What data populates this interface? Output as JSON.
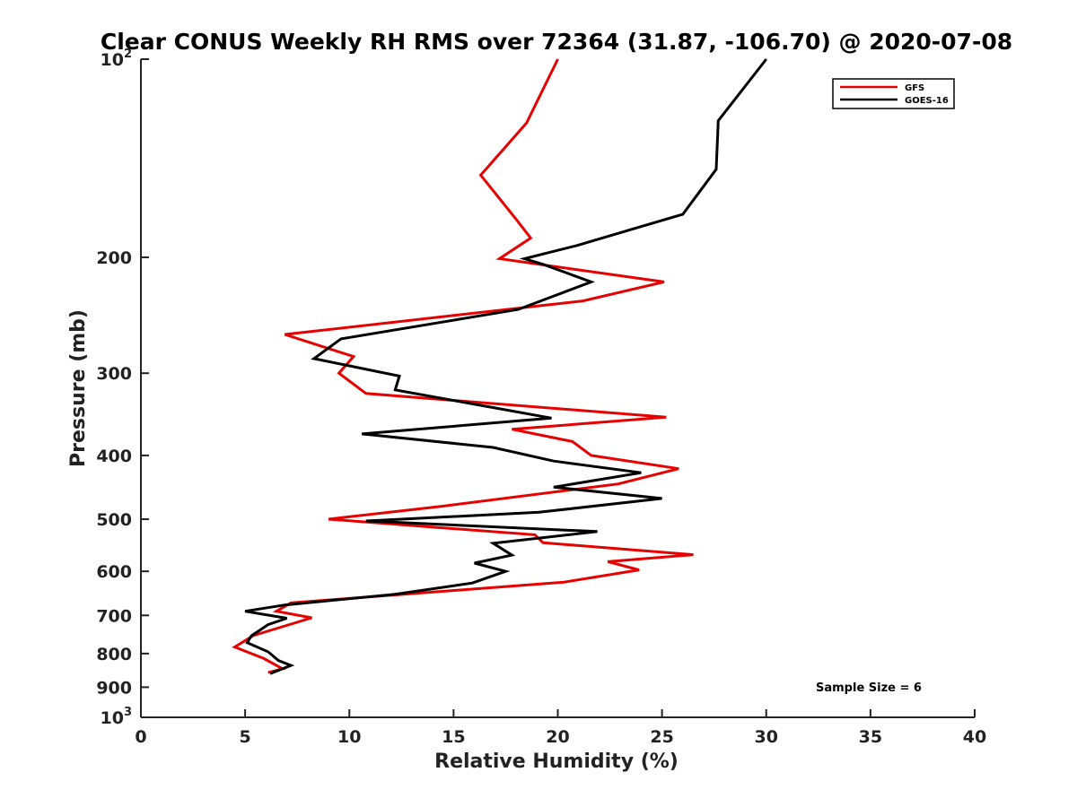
{
  "chart_data": {
    "type": "line",
    "title": "Clear CONUS Weekly RH RMS over 72364 (31.87, -106.70) @ 2020-07-08",
    "xlabel": "Relative Humidity (%)",
    "ylabel": "Pressure (mb)",
    "xlim": [
      0,
      40
    ],
    "ylim": [
      100,
      1000
    ],
    "y_scale": "log",
    "y_reversed": true,
    "x_ticks": [
      "0",
      "5",
      "10",
      "15",
      "20",
      "25",
      "30",
      "35",
      "40"
    ],
    "y_ticks": [
      {
        "value": 100,
        "base": "10",
        "exp": "2"
      },
      {
        "value": 200,
        "label": "200"
      },
      {
        "value": 300,
        "label": "300"
      },
      {
        "value": 400,
        "label": "400"
      },
      {
        "value": 500,
        "label": "500"
      },
      {
        "value": 600,
        "label": "600"
      },
      {
        "value": 700,
        "label": "700"
      },
      {
        "value": 800,
        "label": "800"
      },
      {
        "value": 900,
        "label": "900"
      },
      {
        "value": 1000,
        "base": "10",
        "exp": "3"
      }
    ],
    "legend_position": "top-right",
    "annotation": "Sample Size = 6",
    "series": [
      {
        "name": "GFS",
        "color": "#e60000",
        "points": [
          [
            20.0,
            100
          ],
          [
            18.5,
            125
          ],
          [
            16.3,
            150
          ],
          [
            18.0,
            175
          ],
          [
            18.7,
            187
          ],
          [
            17.2,
            201
          ],
          [
            25.1,
            218
          ],
          [
            21.2,
            233
          ],
          [
            6.9,
            262
          ],
          [
            10.2,
            283
          ],
          [
            9.5,
            300
          ],
          [
            10.8,
            322
          ],
          [
            25.2,
            350
          ],
          [
            17.8,
            365
          ],
          [
            20.7,
            381
          ],
          [
            21.6,
            400
          ],
          [
            25.8,
            419
          ],
          [
            22.9,
            442
          ],
          [
            14.4,
            478
          ],
          [
            9.0,
            500
          ],
          [
            18.9,
            528
          ],
          [
            19.3,
            543
          ],
          [
            26.5,
            566
          ],
          [
            22.4,
            580
          ],
          [
            23.9,
            597
          ],
          [
            20.3,
            623
          ],
          [
            7.2,
            670
          ],
          [
            6.5,
            690
          ],
          [
            8.2,
            706
          ],
          [
            5.4,
            751
          ],
          [
            4.5,
            782
          ],
          [
            5.9,
            814
          ],
          [
            6.8,
            844
          ],
          [
            6.1,
            855
          ]
        ]
      },
      {
        "name": "GOES-16",
        "color": "#000000",
        "points": [
          [
            30.0,
            100
          ],
          [
            27.7,
            124
          ],
          [
            27.6,
            147
          ],
          [
            26.0,
            172
          ],
          [
            20.9,
            192
          ],
          [
            18.4,
            201
          ],
          [
            19.3,
            205
          ],
          [
            21.6,
            218
          ],
          [
            18.1,
            240
          ],
          [
            9.6,
            266
          ],
          [
            8.3,
            285
          ],
          [
            12.4,
            303
          ],
          [
            12.2,
            318
          ],
          [
            19.7,
            351
          ],
          [
            10.6,
            371
          ],
          [
            16.9,
            389
          ],
          [
            19.8,
            408
          ],
          [
            24.0,
            425
          ],
          [
            19.8,
            447
          ],
          [
            25.0,
            465
          ],
          [
            19.1,
            488
          ],
          [
            10.8,
            503
          ],
          [
            21.9,
            522
          ],
          [
            16.9,
            544
          ],
          [
            17.8,
            567
          ],
          [
            16.0,
            583
          ],
          [
            17.5,
            600
          ],
          [
            15.9,
            625
          ],
          [
            12.2,
            650
          ],
          [
            6.9,
            675
          ],
          [
            5.0,
            690
          ],
          [
            7.0,
            707
          ],
          [
            6.1,
            723
          ],
          [
            5.3,
            752
          ],
          [
            5.1,
            770
          ],
          [
            6.1,
            795
          ],
          [
            6.6,
            820
          ],
          [
            7.2,
            834
          ],
          [
            6.2,
            858
          ]
        ]
      }
    ]
  }
}
